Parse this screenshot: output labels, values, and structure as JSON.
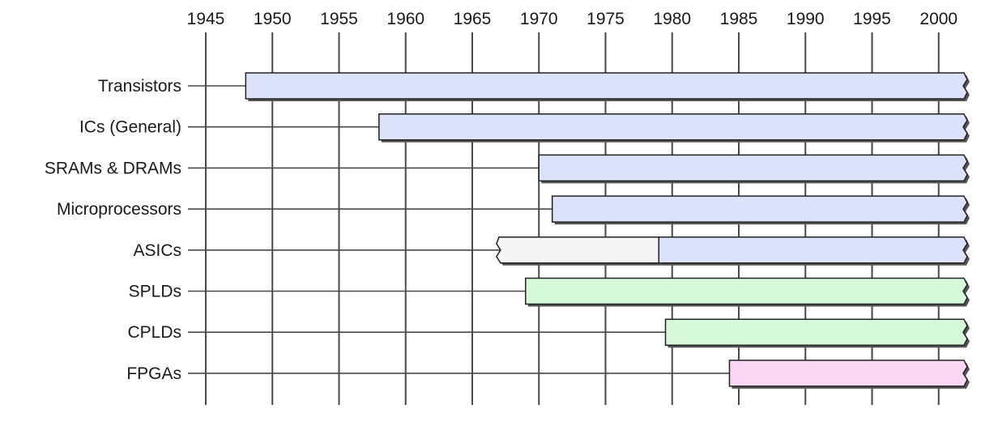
{
  "chart_data": {
    "type": "bar",
    "orientation": "horizontal-timeline",
    "title": "",
    "xlabel": "",
    "ylabel": "",
    "x_ticks": [
      1945,
      1950,
      1955,
      1960,
      1965,
      1970,
      1975,
      1980,
      1985,
      1990,
      1995,
      2000
    ],
    "xlim": [
      1945,
      2002
    ],
    "grid": true,
    "axis_position": "top",
    "bars_continue_past_end": true,
    "categories": [
      "Transistors",
      "ICs (General)",
      "SRAMs & DRAMs",
      "Microprocessors",
      "ASICs",
      "SPLDs",
      "CPLDs",
      "FPGAs"
    ],
    "segments": [
      {
        "category": "Transistors",
        "start": 1948,
        "end": 2002,
        "color": "#dde2fb"
      },
      {
        "category": "ICs (General)",
        "start": 1958,
        "end": 2002,
        "color": "#dde2fb"
      },
      {
        "category": "SRAMs & DRAMs",
        "start": 1970,
        "end": 2002,
        "color": "#dde2fb"
      },
      {
        "category": "Microprocessors",
        "start": 1971,
        "end": 2002,
        "color": "#dde2fb"
      },
      {
        "category": "ASICs",
        "start": 1967,
        "end": 1979,
        "color": "#f5f5f5"
      },
      {
        "category": "ASICs",
        "start": 1979,
        "end": 2002,
        "color": "#dde2fb"
      },
      {
        "category": "SPLDs",
        "start": 1969,
        "end": 2002,
        "color": "#d5f9d9"
      },
      {
        "category": "CPLDs",
        "start": 1979.5,
        "end": 2002,
        "color": "#d5f9d9"
      },
      {
        "category": "FPGAs",
        "start": 1984.3,
        "end": 2002,
        "color": "#fbd7f3"
      }
    ]
  }
}
